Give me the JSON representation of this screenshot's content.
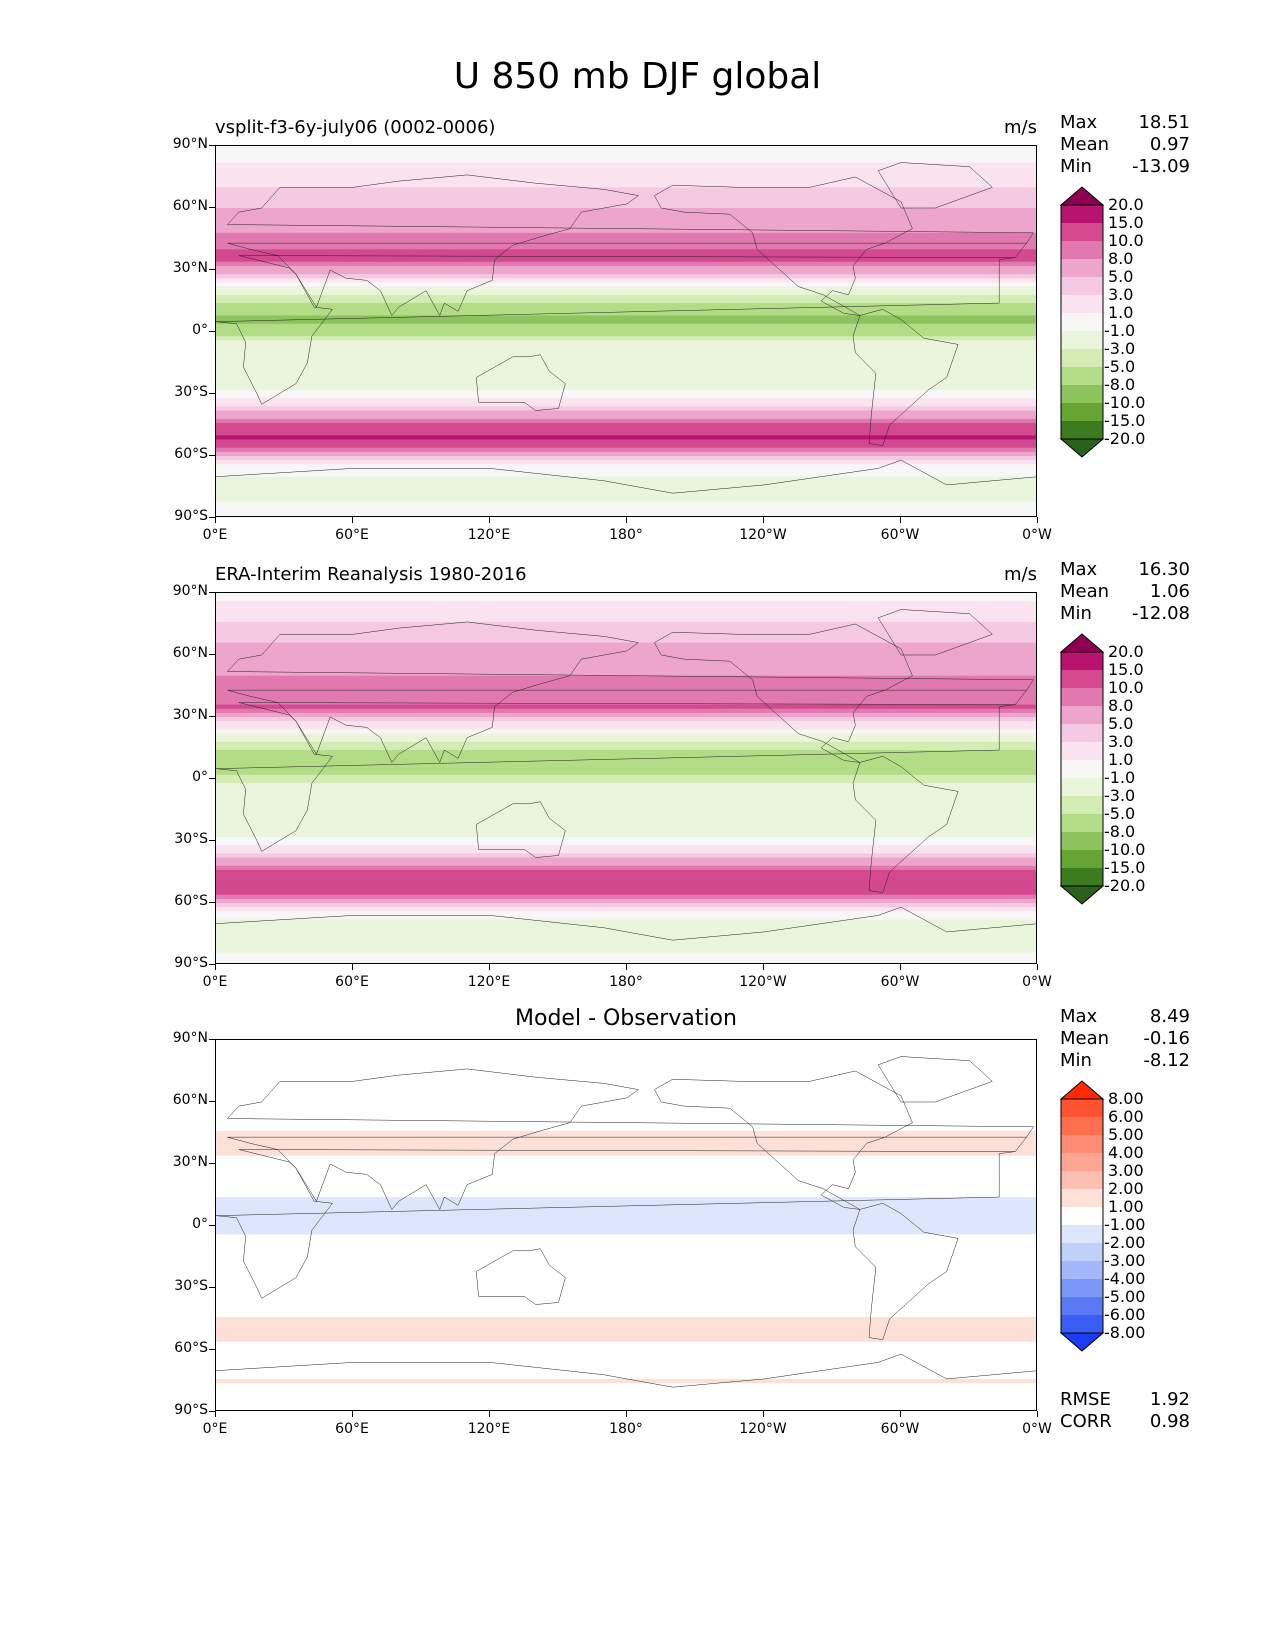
{
  "figure": {
    "title": "U 850 mb DJF global"
  },
  "panels": [
    {
      "id": "test",
      "title": "vsplit-f3-6y-july06 (0002-0006)",
      "units": "m/s",
      "stats": [
        {
          "label": "Max",
          "value": "18.51"
        },
        {
          "label": "Mean",
          "value": "0.97"
        },
        {
          "label": "Min",
          "value": "-13.09"
        }
      ],
      "colorbar": {
        "labels": [
          "20.0",
          "15.0",
          "10.0",
          "8.0",
          "5.0",
          "3.0",
          "1.0",
          "-1.0",
          "-3.0",
          "-5.0",
          "-8.0",
          "-10.0",
          "-15.0",
          "-20.0"
        ],
        "colors": [
          "#8e0152",
          "#b8146f",
          "#d3488f",
          "#e179b0",
          "#eea5cc",
          "#f6c9e2",
          "#fbe3ef",
          "#f7f7f7",
          "#ebf5dc",
          "#d3ecb4",
          "#b3dc86",
          "#8dc35d",
          "#66a534",
          "#3c7b1f",
          "#2a621b"
        ]
      }
    },
    {
      "id": "reference",
      "title": "ERA-Interim Reanalysis 1980-2016",
      "units": "m/s",
      "stats": [
        {
          "label": "Max",
          "value": "16.30"
        },
        {
          "label": "Mean",
          "value": "1.06"
        },
        {
          "label": "Min",
          "value": "-12.08"
        }
      ],
      "colorbar": {
        "labels": [
          "20.0",
          "15.0",
          "10.0",
          "8.0",
          "5.0",
          "3.0",
          "1.0",
          "-1.0",
          "-3.0",
          "-5.0",
          "-8.0",
          "-10.0",
          "-15.0",
          "-20.0"
        ],
        "colors": [
          "#8e0152",
          "#b8146f",
          "#d3488f",
          "#e179b0",
          "#eea5cc",
          "#f6c9e2",
          "#fbe3ef",
          "#f7f7f7",
          "#ebf5dc",
          "#d3ecb4",
          "#b3dc86",
          "#8dc35d",
          "#66a534",
          "#3c7b1f",
          "#2a621b"
        ]
      }
    },
    {
      "id": "difference",
      "title": "Model - Observation",
      "units": "",
      "stats": [
        {
          "label": "Max",
          "value": "8.49"
        },
        {
          "label": "Mean",
          "value": "-0.16"
        },
        {
          "label": "Min",
          "value": "-8.12"
        }
      ],
      "colorbar": {
        "labels": [
          "8.00",
          "6.00",
          "5.00",
          "4.00",
          "3.00",
          "2.00",
          "1.00",
          "-1.00",
          "-2.00",
          "-3.00",
          "-4.00",
          "-5.00",
          "-6.00",
          "-8.00"
        ],
        "colors": [
          "#ff2a00",
          "#fe5230",
          "#fe6f50",
          "#fd8b72",
          "#fca592",
          "#fcc0b2",
          "#fde0d8",
          "#ffffff",
          "#dde6fd",
          "#c0d0fb",
          "#a2b8fa",
          "#7c98f7",
          "#5a7af5",
          "#3a5df4",
          "#1a3cf5"
        ]
      },
      "metrics": [
        {
          "label": "RMSE",
          "value": "1.92"
        },
        {
          "label": "CORR",
          "value": "0.98"
        }
      ]
    }
  ],
  "axes": {
    "xticks": [
      "0°E",
      "60°E",
      "120°E",
      "180°",
      "120°W",
      "60°W",
      "0°W"
    ],
    "yticks": [
      "90°N",
      "60°N",
      "30°N",
      "0°",
      "30°S",
      "60°S",
      "90°S"
    ]
  },
  "chart_data": [
    {
      "type": "heatmap",
      "title": "vsplit-f3-6y-july06 (0002-0006)",
      "variable": "U 850 mb DJF",
      "units": "m/s",
      "zonal_mean_profile": {
        "lat": [
          90,
          75,
          60,
          45,
          35,
          25,
          15,
          5,
          -5,
          -15,
          -25,
          -35,
          -45,
          -50,
          -55,
          -65,
          -75,
          -90
        ],
        "u": [
          0,
          2,
          5,
          9,
          11,
          1,
          -5,
          -9,
          -3,
          -3,
          -2,
          2,
          10,
          16,
          12,
          0,
          -2,
          0
        ]
      },
      "xlim": [
        0,
        360
      ],
      "ylim": [
        -90,
        90
      ]
    },
    {
      "type": "heatmap",
      "title": "ERA-Interim Reanalysis 1980-2016",
      "variable": "U 850 mb DJF",
      "units": "m/s",
      "zonal_mean_profile": {
        "lat": [
          90,
          75,
          60,
          45,
          35,
          25,
          15,
          5,
          -5,
          -15,
          -25,
          -35,
          -45,
          -50,
          -55,
          -65,
          -75,
          -90
        ],
        "u": [
          0,
          3,
          6,
          9,
          10,
          1,
          -5,
          -7,
          -2,
          -3,
          -2,
          2,
          10,
          15,
          11,
          0,
          -3,
          0
        ]
      },
      "xlim": [
        0,
        360
      ],
      "ylim": [
        -90,
        90
      ]
    },
    {
      "type": "heatmap",
      "title": "Model - Observation",
      "variable": "U 850 mb DJF difference",
      "units": "m/s",
      "zonal_mean_profile": {
        "lat": [
          90,
          75,
          60,
          45,
          35,
          25,
          15,
          5,
          -5,
          -15,
          -25,
          -35,
          -45,
          -50,
          -55,
          -65,
          -75,
          -90
        ],
        "u": [
          1,
          -1,
          -1,
          1,
          1,
          0,
          -1,
          -2,
          -1,
          0,
          -1,
          0,
          1,
          2,
          1,
          -1,
          1,
          0
        ]
      },
      "xlim": [
        0,
        360
      ],
      "ylim": [
        -90,
        90
      ]
    }
  ]
}
